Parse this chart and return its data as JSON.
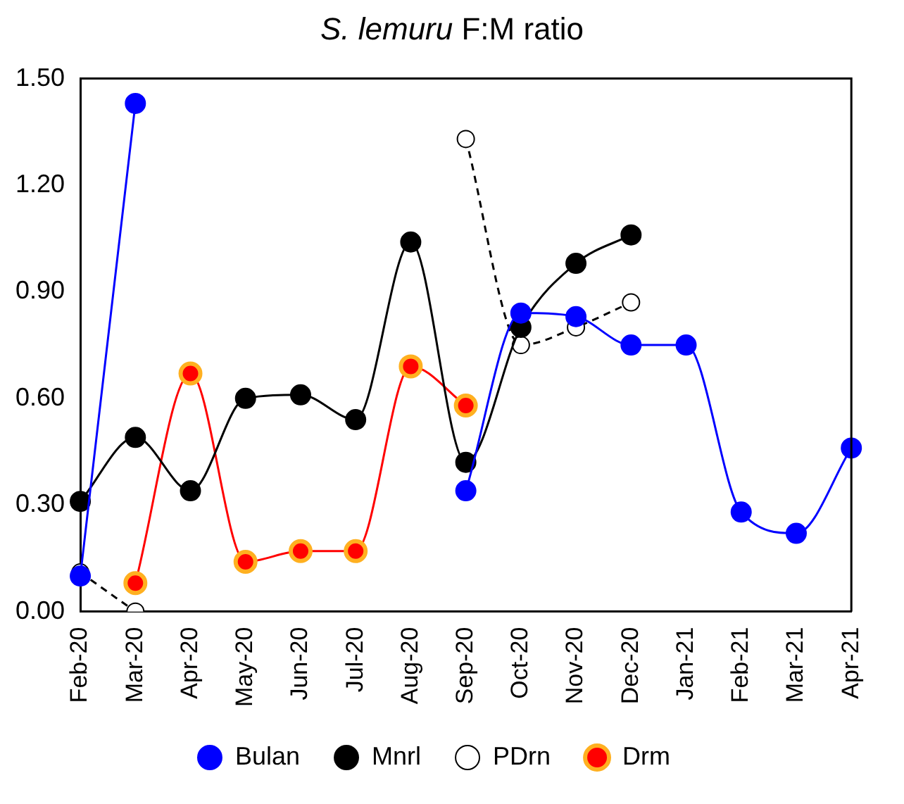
{
  "chart_data": {
    "type": "line",
    "title": "S. lemuru F:M ratio",
    "categories": [
      "Feb-20",
      "Mar-20",
      "Apr-20",
      "May-20",
      "Jun-20",
      "Jul-20",
      "Aug-20",
      "Sep-20",
      "Oct-20",
      "Nov-20",
      "Dec-20",
      "Jan-21",
      "Feb-21",
      "Mar-21",
      "Apr-21"
    ],
    "series": [
      {
        "name": "Bulan",
        "color": "#0000ff",
        "values": [
          0.1,
          1.43,
          null,
          null,
          null,
          null,
          null,
          0.34,
          0.84,
          0.83,
          0.75,
          0.75,
          0.28,
          0.22,
          0.46
        ]
      },
      {
        "name": "Mnrl",
        "color": "#000000",
        "values": [
          0.31,
          0.49,
          0.34,
          0.6,
          0.61,
          0.54,
          1.04,
          0.42,
          0.8,
          0.98,
          1.06,
          null,
          null,
          null,
          null
        ]
      },
      {
        "name": "PDrn",
        "color": "#000000",
        "line_style": "dashed",
        "values": [
          0.11,
          0.0,
          null,
          null,
          null,
          null,
          null,
          1.33,
          0.75,
          0.8,
          0.87,
          null,
          null,
          null,
          null
        ]
      },
      {
        "name": "Drm",
        "color": "#ff0000",
        "values": [
          null,
          0.08,
          0.67,
          0.14,
          0.17,
          0.17,
          0.69,
          0.58,
          null,
          null,
          null,
          null,
          null,
          null,
          null
        ]
      }
    ],
    "ylim": [
      0,
      1.5
    ],
    "yticks": [
      {
        "value": 0,
        "label": "0.00"
      },
      {
        "value": 0.3,
        "label": "0.30"
      },
      {
        "value": 0.6,
        "label": "0.60"
      },
      {
        "value": 0.9,
        "label": "0.90"
      },
      {
        "value": 1.2,
        "label": "1.20"
      },
      {
        "value": 1.5,
        "label": "1.50"
      }
    ],
    "grid": false,
    "legend": "bottom",
    "marker": "circle"
  }
}
